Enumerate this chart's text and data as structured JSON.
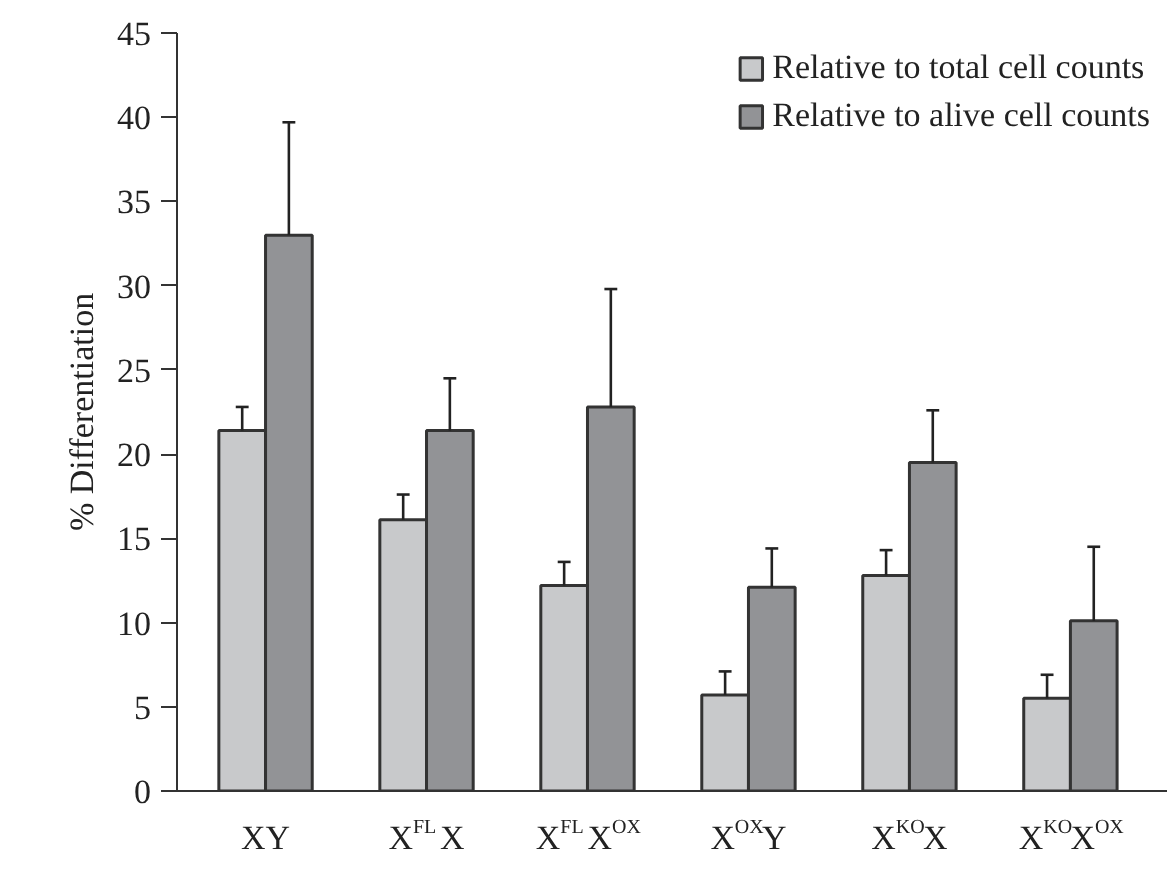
{
  "chart_data": {
    "type": "bar",
    "ylabel": "% Differentiation",
    "categories": [
      "XY",
      "X$^{FL}$X",
      "X$^{FL}$X$^{OX}$",
      "X$^{OX}$Y",
      "X$^{KO}$X",
      "X$^{KO}$X$^{OX}$"
    ],
    "series": [
      {
        "name": "Relative to total cell counts",
        "color": "#c8c9cb",
        "values": [
          21.4,
          16.1,
          12.2,
          5.7,
          12.8,
          5.5
        ],
        "errors": [
          [
            21.4,
            22.8
          ],
          [
            16.1,
            17.6
          ],
          [
            12.2,
            13.6
          ],
          [
            5.7,
            7.1
          ],
          [
            12.8,
            14.3
          ],
          [
            5.5,
            6.9
          ]
        ]
      },
      {
        "name": "Relative to alive cell counts",
        "color": "#929396",
        "values": [
          33.0,
          21.4,
          22.8,
          12.1,
          19.5,
          10.1
        ],
        "errors": [
          [
            33.0,
            39.7
          ],
          [
            21.4,
            24.5
          ],
          [
            22.8,
            29.8
          ],
          [
            12.1,
            14.4
          ],
          [
            19.5,
            22.6
          ],
          [
            10.1,
            14.5
          ]
        ]
      }
    ],
    "ylim": [
      0,
      45
    ],
    "yticks": [
      0,
      5,
      10,
      15,
      20,
      25,
      30,
      35,
      40,
      45
    ],
    "grid": false,
    "legend": "top right"
  }
}
